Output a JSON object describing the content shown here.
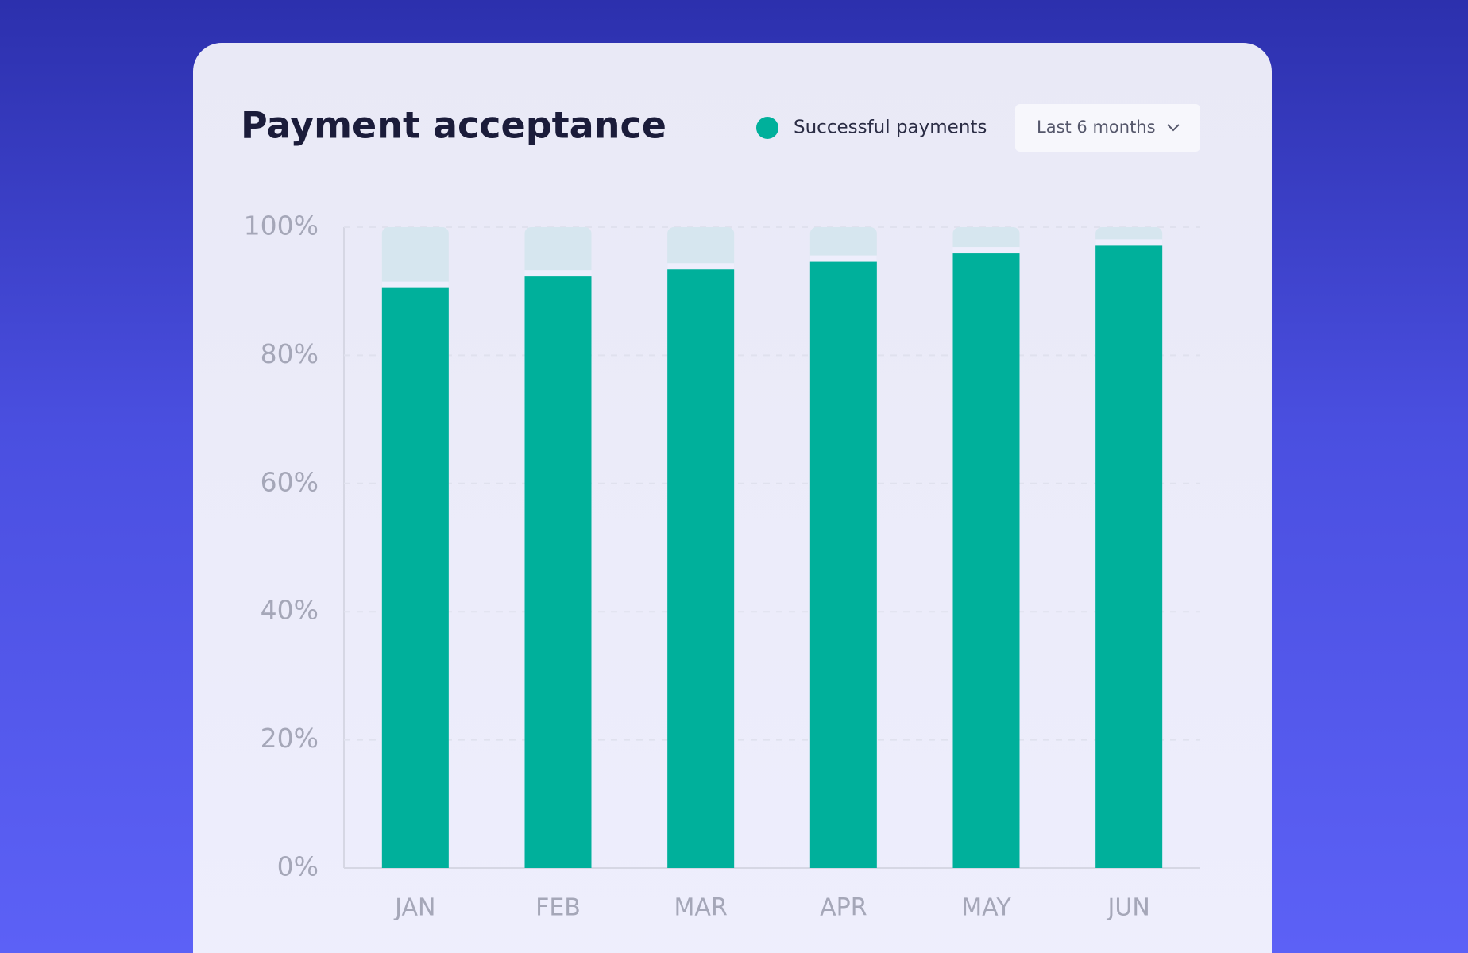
{
  "chart_data": {
    "type": "bar",
    "title": "Payment acceptance",
    "period_label": "Last 6 months",
    "categories": [
      "JAN",
      "FEB",
      "MAR",
      "APR",
      "MAY",
      "JUN"
    ],
    "series": [
      {
        "name": "Successful payments",
        "color": "#00b09b",
        "values": [
          90.5,
          92.3,
          93.4,
          94.6,
          95.9,
          97.1
        ]
      }
    ],
    "ylim": [
      0,
      100
    ],
    "yticks": [
      {
        "value": 0,
        "label": "0%"
      },
      {
        "value": 20,
        "label": "20%"
      },
      {
        "value": 40,
        "label": "40%"
      },
      {
        "value": 60,
        "label": "60%"
      },
      {
        "value": 80,
        "label": "80%"
      },
      {
        "value": 100,
        "label": "100%"
      }
    ],
    "grid": true
  }
}
